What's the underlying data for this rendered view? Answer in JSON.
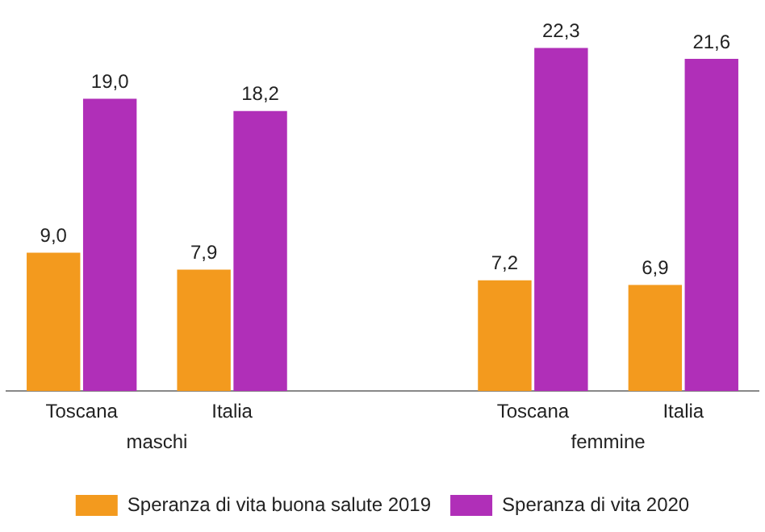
{
  "chart_data": {
    "type": "bar",
    "categories": [
      "Toscana",
      "Italia",
      null,
      "Toscana",
      "Italia"
    ],
    "series": [
      {
        "name": "Speranza di vita buona salute 2019",
        "color": "#f39a1e",
        "values": [
          9.0,
          7.9,
          null,
          7.2,
          6.9
        ],
        "value_labels": [
          "9,0",
          "7,9",
          null,
          "7,2",
          "6,9"
        ]
      },
      {
        "name": "Speranza di vita 2020",
        "color": "#b02fb8",
        "values": [
          19.0,
          18.2,
          null,
          22.3,
          21.6
        ],
        "value_labels": [
          "19,0",
          "18,2",
          null,
          "22,3",
          "21,6"
        ]
      }
    ],
    "annotations": [
      "maschi",
      "femmine"
    ],
    "grid": false,
    "legend": "bottom"
  }
}
